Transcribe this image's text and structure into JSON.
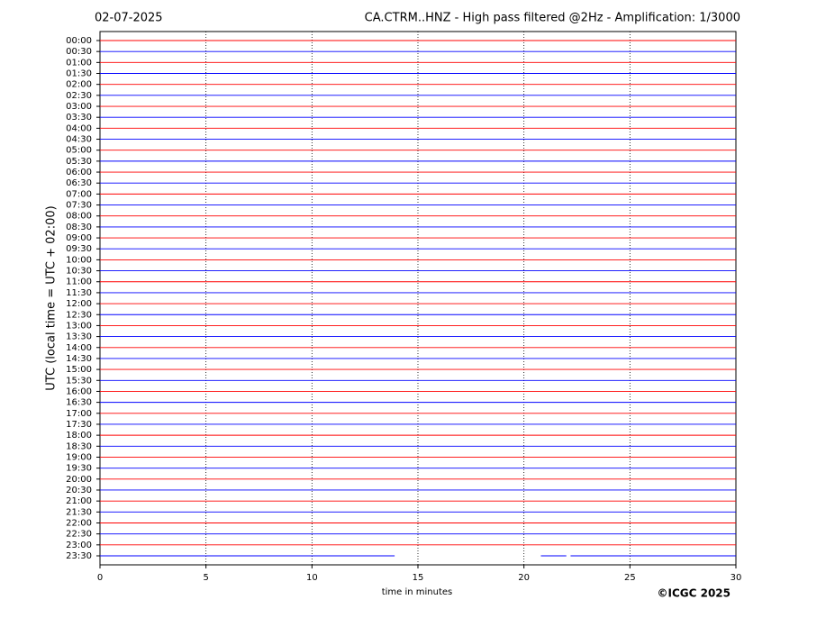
{
  "chart_data": {
    "type": "helicorder",
    "date": "02-07-2025",
    "title": "CA.CTRM..HNZ - High pass filtered @2Hz - Amplification: 1/3000",
    "y_label": "UTC (local time = UTC + 02:00)",
    "x_label": "time in minutes",
    "copyright": "©ICGC 2025",
    "xlim": [
      0,
      30
    ],
    "xticks": [
      0,
      5,
      10,
      15,
      20,
      25,
      30
    ],
    "grid": true,
    "colors": [
      "#ff0000",
      "#0000ff"
    ],
    "traces": [
      {
        "label": "00:00",
        "segments": [
          [
            0,
            30
          ]
        ]
      },
      {
        "label": "00:30",
        "segments": [
          [
            0,
            30
          ]
        ]
      },
      {
        "label": "01:00",
        "segments": [
          [
            0,
            30
          ]
        ]
      },
      {
        "label": "01:30",
        "segments": [
          [
            0,
            30
          ]
        ]
      },
      {
        "label": "02:00",
        "segments": [
          [
            0,
            30
          ]
        ]
      },
      {
        "label": "02:30",
        "segments": [
          [
            0,
            30
          ]
        ]
      },
      {
        "label": "03:00",
        "segments": [
          [
            0,
            30
          ]
        ]
      },
      {
        "label": "03:30",
        "segments": [
          [
            0,
            30
          ]
        ]
      },
      {
        "label": "04:00",
        "segments": [
          [
            0,
            30
          ]
        ]
      },
      {
        "label": "04:30",
        "segments": [
          [
            0,
            30
          ]
        ]
      },
      {
        "label": "05:00",
        "segments": [
          [
            0,
            30
          ]
        ]
      },
      {
        "label": "05:30",
        "segments": [
          [
            0,
            30
          ]
        ]
      },
      {
        "label": "06:00",
        "segments": [
          [
            0,
            30
          ]
        ]
      },
      {
        "label": "06:30",
        "segments": [
          [
            0,
            30
          ]
        ]
      },
      {
        "label": "07:00",
        "segments": [
          [
            0,
            30
          ]
        ]
      },
      {
        "label": "07:30",
        "segments": [
          [
            0,
            30
          ]
        ]
      },
      {
        "label": "08:00",
        "segments": [
          [
            0,
            30
          ]
        ]
      },
      {
        "label": "08:30",
        "segments": [
          [
            0,
            30
          ]
        ]
      },
      {
        "label": "09:00",
        "segments": [
          [
            0,
            30
          ]
        ]
      },
      {
        "label": "09:30",
        "segments": [
          [
            0,
            30
          ]
        ]
      },
      {
        "label": "10:00",
        "segments": [
          [
            0,
            30
          ]
        ]
      },
      {
        "label": "10:30",
        "segments": [
          [
            0,
            30
          ]
        ]
      },
      {
        "label": "11:00",
        "segments": [
          [
            0,
            30
          ]
        ]
      },
      {
        "label": "11:30",
        "segments": [
          [
            0,
            30
          ]
        ]
      },
      {
        "label": "12:00",
        "segments": [
          [
            0,
            30
          ]
        ]
      },
      {
        "label": "12:30",
        "segments": [
          [
            0,
            30
          ]
        ]
      },
      {
        "label": "13:00",
        "segments": [
          [
            0,
            30
          ]
        ]
      },
      {
        "label": "13:30",
        "segments": [
          [
            0,
            30
          ]
        ]
      },
      {
        "label": "14:00",
        "segments": [
          [
            0,
            30
          ]
        ]
      },
      {
        "label": "14:30",
        "segments": [
          [
            0,
            30
          ]
        ]
      },
      {
        "label": "15:00",
        "segments": [
          [
            0,
            30
          ]
        ]
      },
      {
        "label": "15:30",
        "segments": [
          [
            0,
            30
          ]
        ]
      },
      {
        "label": "16:00",
        "segments": [
          [
            0,
            30
          ]
        ]
      },
      {
        "label": "16:30",
        "segments": [
          [
            0,
            30
          ]
        ]
      },
      {
        "label": "17:00",
        "segments": [
          [
            0,
            30
          ]
        ]
      },
      {
        "label": "17:30",
        "segments": [
          [
            0,
            30
          ]
        ]
      },
      {
        "label": "18:00",
        "segments": [
          [
            0,
            30
          ]
        ]
      },
      {
        "label": "18:30",
        "segments": [
          [
            0,
            30
          ]
        ]
      },
      {
        "label": "19:00",
        "segments": [
          [
            0,
            30
          ]
        ]
      },
      {
        "label": "19:30",
        "segments": [
          [
            0,
            30
          ]
        ]
      },
      {
        "label": "20:00",
        "segments": [
          [
            0,
            30
          ]
        ]
      },
      {
        "label": "20:30",
        "segments": [
          [
            0,
            30
          ]
        ]
      },
      {
        "label": "21:00",
        "segments": [
          [
            0,
            30
          ]
        ]
      },
      {
        "label": "21:30",
        "segments": [
          [
            0,
            30
          ]
        ]
      },
      {
        "label": "22:00",
        "segments": [
          [
            0,
            30
          ]
        ]
      },
      {
        "label": "22:30",
        "segments": [
          [
            0,
            30
          ]
        ]
      },
      {
        "label": "23:00",
        "segments": [
          [
            0,
            30
          ]
        ]
      },
      {
        "label": "23:30",
        "segments": [
          [
            0,
            13.9
          ],
          [
            20.8,
            22
          ],
          [
            22.2,
            30
          ]
        ]
      }
    ]
  }
}
